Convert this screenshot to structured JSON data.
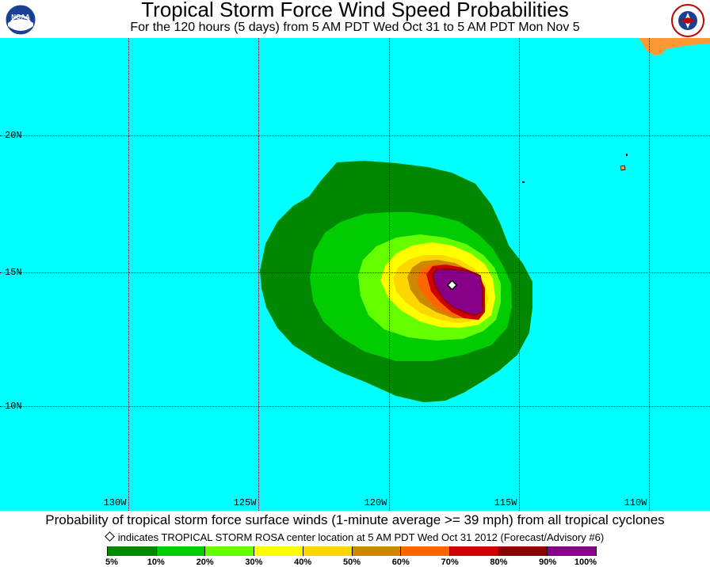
{
  "header": {
    "title": "Tropical Storm Force Wind Speed Probabilities",
    "subtitle": "For the 120 hours (5 days) from 5 AM PDT Wed Oct 31 to 5 AM PDT Mon Nov 5",
    "left_logo": "NOAA",
    "right_logo": "NATIONAL WEATHER SERVICE"
  },
  "map": {
    "lat_labels": [
      "20N",
      "15N",
      "10N"
    ],
    "lon_labels": [
      "130W",
      "125W",
      "120W",
      "115W",
      "110W"
    ],
    "ocean_color": "#00ffff",
    "land_color": "#ff9933",
    "storm_center_icon": "diamond-marker-icon"
  },
  "footer": {
    "caption": "Probability of tropical storm force surface winds (1-minute average >= 39 mph) from all tropical cyclones",
    "note": "indicates TROPICAL STORM ROSA center location at 5 AM PDT Wed Oct 31 2012 (Forecast/Advisory #6)",
    "legend_colors": [
      "#008800",
      "#00cc00",
      "#66ff00",
      "#ffff00",
      "#ffd700",
      "#cc8800",
      "#ff6600",
      "#cc0000",
      "#880000",
      "#880088"
    ],
    "legend_ticks": [
      "5%",
      "10%",
      "20%",
      "30%",
      "40%",
      "50%",
      "60%",
      "70%",
      "80%",
      "90%",
      "100%"
    ]
  }
}
